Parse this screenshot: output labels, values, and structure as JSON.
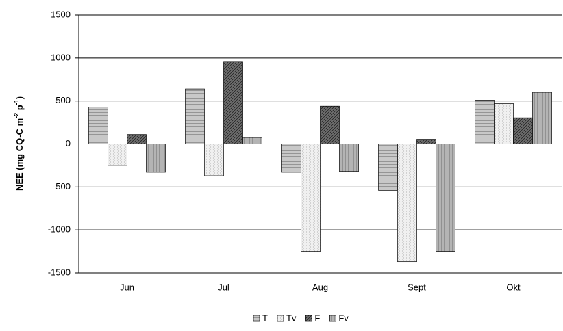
{
  "chart_data": {
    "type": "bar",
    "y_label": [
      "NEE (mg CQ-C m",
      "-2",
      " p",
      "-1",
      ")"
    ],
    "categories": [
      "Jun",
      "Jul",
      "Aug",
      "Sept",
      "Okt"
    ],
    "series": [
      {
        "name": "T",
        "color": "#c8c8c8",
        "pattern": "horizontal",
        "values": [
          430,
          640,
          -330,
          -540,
          510
        ]
      },
      {
        "name": "Tv",
        "color": "#f0f0f0",
        "pattern": "dots",
        "values": [
          -250,
          -370,
          -1250,
          -1370,
          470
        ]
      },
      {
        "name": "F",
        "color": "#707070",
        "pattern": "diagonal",
        "values": [
          110,
          960,
          440,
          55,
          305
        ]
      },
      {
        "name": "Fv",
        "color": "#b4b4b4",
        "pattern": "vertical",
        "values": [
          -330,
          75,
          -320,
          -1250,
          600
        ]
      }
    ],
    "ylim": [
      -1500,
      1500
    ],
    "yticks": [
      -1500,
      -1000,
      -500,
      0,
      500,
      1000,
      1500
    ],
    "grid": true
  }
}
